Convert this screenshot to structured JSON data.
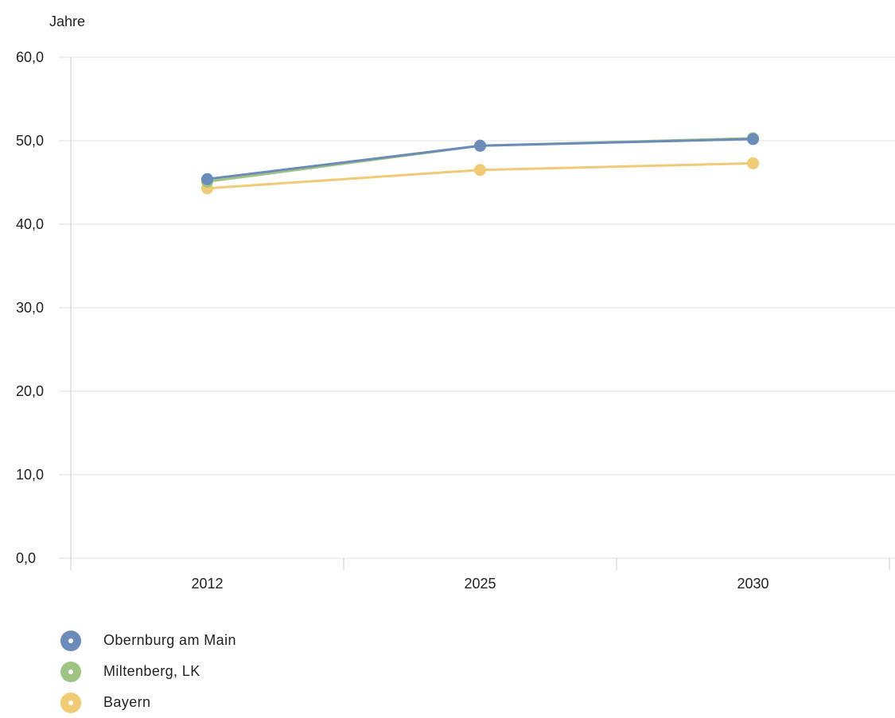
{
  "chart_data": {
    "type": "line",
    "unit_label": "Jahre",
    "categories": [
      "2012",
      "2025",
      "2030"
    ],
    "yticks": [
      "0,0",
      "10,0",
      "20,0",
      "30,0",
      "40,0",
      "50,0",
      "60,0"
    ],
    "ylim": [
      0,
      60
    ],
    "grid": true,
    "legend_position": "bottom-left",
    "series": [
      {
        "name": "Obernburg am Main",
        "color": "#6b8cb8",
        "values": [
          45.4,
          49.4,
          50.2
        ]
      },
      {
        "name": "Miltenberg, LK",
        "color": "#9dc482",
        "values": [
          45.1,
          49.4,
          50.3
        ]
      },
      {
        "name": "Bayern",
        "color": "#f0ca74",
        "values": [
          44.3,
          46.5,
          47.3
        ]
      }
    ]
  }
}
